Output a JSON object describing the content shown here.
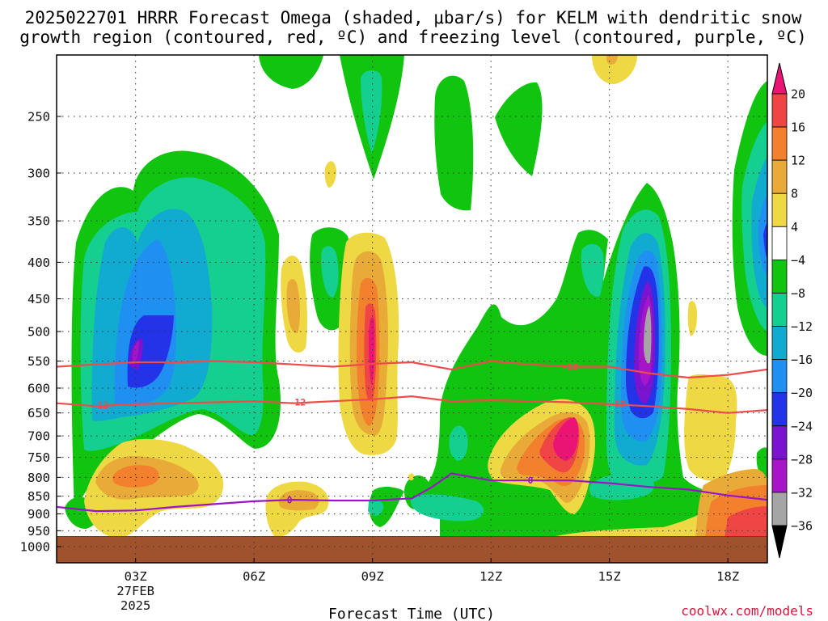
{
  "title": {
    "line1": "2025022701 HRRR Forecast Omega (shaded, μbar/s) for KELM with dendritic snow",
    "line2": "growth region (contoured, red, ºC) and freezing level (contoured, purple, ºC)"
  },
  "credit": "coolwx.com/models",
  "chart_data": {
    "type": "contour",
    "title": "2025022701 HRRR Forecast Omega (shaded, μbar/s) for KELM with dendritic snow growth region (contoured, red, ºC) and freezing level (contoured, purple, ºC)",
    "xlabel": "Forecast Time (UTC)",
    "ylabel": "",
    "x_range": [
      1,
      19
    ],
    "y_scale": "log-pressure (hPa, reversed)",
    "y_range": [
      1000,
      200
    ],
    "x_ticks": [
      {
        "hour": 3,
        "label": "03Z",
        "sub1": "27FEB",
        "sub2": "2025"
      },
      {
        "hour": 6,
        "label": "06Z"
      },
      {
        "hour": 9,
        "label": "09Z"
      },
      {
        "hour": 12,
        "label": "12Z"
      },
      {
        "hour": 15,
        "label": "15Z"
      },
      {
        "hour": 18,
        "label": "18Z"
      }
    ],
    "y_ticks": [
      250,
      300,
      350,
      400,
      450,
      500,
      550,
      600,
      650,
      700,
      750,
      800,
      850,
      900,
      950,
      1000
    ],
    "grid": "dotted",
    "colorbar": {
      "units": "μbar/s",
      "labels": [
        "20",
        "16",
        "12",
        "8",
        "4",
        "−4",
        "−8",
        "−12",
        "−16",
        "−20",
        "−24",
        "−28",
        "−32",
        "−36"
      ],
      "colors": [
        "#ea1475",
        "#f04545",
        "#f2802d",
        "#e8ab38",
        "#eed843",
        "#ffffff",
        "#10c410",
        "#14cf90",
        "#11aad0",
        "#1f8ff2",
        "#2233e8",
        "#7b14d0",
        "#a616c8",
        "#a5a5a5",
        "#000000"
      ]
    },
    "omega_regions": [
      {
        "name": "ascent column 02Z-05Z",
        "peak_value": -28,
        "center_hour": 3.0,
        "center_hpa": 530
      },
      {
        "name": "ascent column 08Z",
        "peak_value": -12,
        "center_hour": 8.0,
        "center_hpa": 410
      },
      {
        "name": "ascent tower 16Z",
        "peak_value": -36,
        "center_hour": 16.0,
        "center_hpa": 470
      },
      {
        "name": "ascent edge 19Z",
        "peak_value": -24,
        "center_hour": 19.0,
        "center_hpa": 380
      },
      {
        "name": "sinking column 09Z",
        "peak_value": 16,
        "center_hour": 9.0,
        "center_hpa": 560
      },
      {
        "name": "sinking core 14Z",
        "peak_value": 20,
        "center_hour": 14.0,
        "center_hpa": 690
      },
      {
        "name": "sinking lobe 03Z",
        "peak_value": 12,
        "center_hour": 3.2,
        "center_hpa": 800
      }
    ],
    "series": [
      {
        "name": "-18",
        "color": "#ee4b4b",
        "x": [
          1,
          2,
          3,
          4,
          5,
          6,
          7,
          8,
          9,
          10,
          11,
          12,
          13,
          14,
          15,
          16,
          17,
          18,
          19
        ],
        "y": [
          560,
          556,
          552,
          552,
          550,
          552,
          556,
          560,
          555,
          552,
          565,
          550,
          556,
          560,
          560,
          572,
          580,
          575,
          565
        ]
      },
      {
        "name": "-12",
        "color": "#ee4b4b",
        "x": [
          1,
          2,
          3,
          4,
          5,
          6,
          7,
          8,
          9,
          10,
          11,
          12,
          13,
          14,
          15,
          16,
          17,
          18,
          19
        ],
        "y": [
          630,
          636,
          632,
          630,
          628,
          626,
          630,
          626,
          622,
          616,
          626,
          624,
          626,
          628,
          632,
          636,
          642,
          650,
          644
        ]
      },
      {
        "name": "0",
        "color": "#9b14c9",
        "x": [
          1,
          2,
          3,
          4,
          5,
          6,
          7,
          8,
          9,
          10,
          10.5,
          11,
          12,
          13,
          14,
          15,
          16,
          17,
          18,
          19
        ],
        "y": [
          880,
          892,
          890,
          880,
          872,
          864,
          860,
          862,
          862,
          856,
          826,
          790,
          808,
          808,
          808,
          815,
          825,
          832,
          848,
          860
        ]
      }
    ],
    "contour_labels": [
      {
        "text": "-12",
        "hour": 2.1,
        "hpa": 634
      },
      {
        "text": "-12",
        "hour": 7.1,
        "hpa": 628
      },
      {
        "text": "-18",
        "hour": 14.0,
        "hpa": 560
      },
      {
        "text": "-12",
        "hour": 15.2,
        "hpa": 632
      },
      {
        "text": "0",
        "hour": 6.9,
        "hpa": 861
      },
      {
        "text": "0",
        "hour": 13.0,
        "hpa": 808
      }
    ],
    "ground_hpa": 968
  }
}
